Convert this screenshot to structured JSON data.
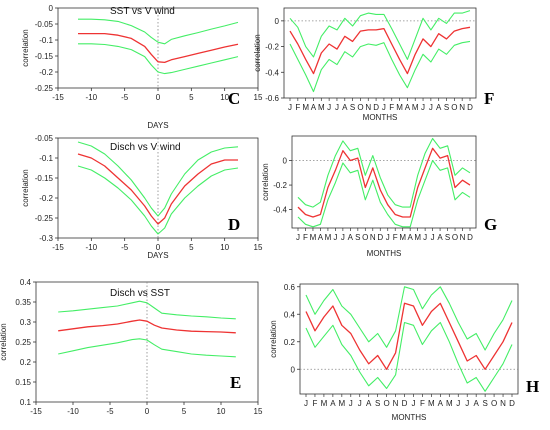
{
  "colors": {
    "mean": "#ee3333",
    "bounds": "#44ee66",
    "axis": "#333333",
    "zero_line": "#888888"
  },
  "chart_data": [
    {
      "id": "C",
      "type": "line",
      "letter": "C",
      "title": "SST vs V wind",
      "xlabel": "DAYS",
      "ylabel": "correlation",
      "xlim": [
        -15,
        15
      ],
      "ylim": [
        -0.25,
        0
      ],
      "xticks": [
        -15,
        -10,
        -5,
        0,
        5,
        10,
        15
      ],
      "yticks": [
        0,
        -0.05,
        -0.1,
        -0.15,
        -0.2,
        -0.25
      ],
      "ytick_labels": [
        "0",
        "-0.05",
        "-0.1",
        "-0.15",
        "-0.2",
        "-0.25"
      ],
      "vline_x": 0,
      "vline_dotted": true,
      "x": [
        -12,
        -10,
        -8,
        -6,
        -4,
        -2,
        -1,
        0,
        1,
        2,
        4,
        6,
        8,
        10,
        12
      ],
      "series": [
        {
          "role": "mean",
          "values": [
            -0.08,
            -0.08,
            -0.08,
            -0.085,
            -0.095,
            -0.12,
            -0.145,
            -0.168,
            -0.17,
            -0.162,
            -0.152,
            -0.142,
            -0.132,
            -0.122,
            -0.113
          ]
        },
        {
          "role": "upper",
          "values": [
            -0.035,
            -0.035,
            -0.037,
            -0.042,
            -0.055,
            -0.075,
            -0.092,
            -0.107,
            -0.112,
            -0.098,
            -0.087,
            -0.077,
            -0.066,
            -0.056,
            -0.045
          ]
        },
        {
          "role": "lower",
          "values": [
            -0.112,
            -0.112,
            -0.114,
            -0.12,
            -0.13,
            -0.152,
            -0.178,
            -0.2,
            -0.205,
            -0.202,
            -0.192,
            -0.182,
            -0.172,
            -0.162,
            -0.152
          ]
        }
      ]
    },
    {
      "id": "D",
      "type": "line",
      "letter": "D",
      "title": "Disch vs V wind",
      "xlabel": "DAYS",
      "ylabel": "correlation",
      "xlim": [
        -15,
        15
      ],
      "ylim": [
        -0.3,
        -0.05
      ],
      "xticks": [
        -15,
        -10,
        -5,
        0,
        5,
        10,
        15
      ],
      "yticks": [
        -0.05,
        -0.1,
        -0.15,
        -0.2,
        -0.25,
        -0.3
      ],
      "ytick_labels": [
        "-0.05",
        "-0.1",
        "-0.15",
        "-0.2",
        "-0.25",
        "-0.3"
      ],
      "vline_x": 0,
      "vline_dotted": true,
      "x": [
        -12,
        -10,
        -8,
        -6,
        -4,
        -2,
        -1,
        0,
        1,
        2,
        4,
        6,
        8,
        10,
        12
      ],
      "series": [
        {
          "role": "mean",
          "values": [
            -0.09,
            -0.1,
            -0.12,
            -0.15,
            -0.18,
            -0.22,
            -0.245,
            -0.265,
            -0.25,
            -0.215,
            -0.17,
            -0.14,
            -0.115,
            -0.105,
            -0.105
          ]
        },
        {
          "role": "upper",
          "values": [
            -0.06,
            -0.07,
            -0.09,
            -0.12,
            -0.155,
            -0.2,
            -0.225,
            -0.245,
            -0.225,
            -0.19,
            -0.14,
            -0.105,
            -0.085,
            -0.075,
            -0.072
          ]
        },
        {
          "role": "lower",
          "values": [
            -0.12,
            -0.13,
            -0.15,
            -0.175,
            -0.205,
            -0.245,
            -0.27,
            -0.29,
            -0.275,
            -0.24,
            -0.2,
            -0.17,
            -0.145,
            -0.13,
            -0.125
          ]
        }
      ]
    },
    {
      "id": "E",
      "type": "line",
      "letter": "E",
      "title": "Disch vs SST",
      "xlabel": "",
      "ylabel": "correlation",
      "xlim": [
        -15,
        15
      ],
      "ylim": [
        0.1,
        0.4
      ],
      "xticks": [
        -15,
        -10,
        -5,
        0,
        5,
        10,
        15
      ],
      "yticks": [
        0.4,
        0.35,
        0.3,
        0.25,
        0.2,
        0.15,
        0.1
      ],
      "ytick_labels": [
        "0.4",
        "0.35",
        "0.3",
        "0.25",
        "0.2",
        "0.15",
        "0.1"
      ],
      "vline_x": 0,
      "vline_dotted": true,
      "x": [
        -12,
        -10,
        -8,
        -6,
        -4,
        -2,
        -1,
        0,
        1,
        2,
        4,
        6,
        8,
        10,
        12
      ],
      "series": [
        {
          "role": "mean",
          "values": [
            0.278,
            0.283,
            0.288,
            0.291,
            0.295,
            0.302,
            0.305,
            0.302,
            0.292,
            0.285,
            0.28,
            0.277,
            0.276,
            0.275,
            0.273
          ]
        },
        {
          "role": "upper",
          "values": [
            0.325,
            0.328,
            0.332,
            0.336,
            0.34,
            0.348,
            0.352,
            0.348,
            0.335,
            0.322,
            0.318,
            0.315,
            0.313,
            0.31,
            0.308
          ]
        },
        {
          "role": "lower",
          "values": [
            0.22,
            0.228,
            0.236,
            0.242,
            0.248,
            0.256,
            0.258,
            0.255,
            0.243,
            0.232,
            0.226,
            0.22,
            0.217,
            0.215,
            0.213
          ]
        }
      ]
    },
    {
      "id": "F",
      "type": "line",
      "letter": "F",
      "title": "",
      "xlabel": "MONTHS",
      "ylabel": "correlation",
      "ylim": [
        -0.6,
        0.1
      ],
      "yticks": [
        0,
        -0.2,
        -0.4,
        -0.6
      ],
      "ytick_labels": [
        "0",
        "-0.2",
        "-0.4",
        "-0.6"
      ],
      "hline_y": 0,
      "hline_dotted": true,
      "categories": [
        "J",
        "F",
        "M",
        "A",
        "M",
        "J",
        "J",
        "A",
        "S",
        "O",
        "N",
        "D",
        "J",
        "F",
        "M",
        "A",
        "M",
        "J",
        "J",
        "A",
        "S",
        "O",
        "N",
        "D"
      ],
      "series": [
        {
          "role": "mean",
          "values": [
            -0.08,
            -0.18,
            -0.3,
            -0.41,
            -0.25,
            -0.18,
            -0.22,
            -0.12,
            -0.16,
            -0.08,
            -0.07,
            -0.07,
            -0.06,
            -0.18,
            -0.3,
            -0.41,
            -0.26,
            -0.14,
            -0.2,
            -0.1,
            -0.14,
            -0.08,
            -0.06,
            -0.05
          ]
        },
        {
          "role": "upper",
          "values": [
            0.02,
            -0.05,
            -0.2,
            -0.28,
            -0.12,
            -0.04,
            -0.07,
            0.02,
            -0.04,
            0.04,
            0.06,
            0.05,
            0.05,
            -0.06,
            -0.18,
            -0.3,
            -0.14,
            0.02,
            -0.07,
            0.02,
            -0.02,
            0.06,
            0.06,
            0.08
          ]
        },
        {
          "role": "lower",
          "values": [
            -0.18,
            -0.3,
            -0.42,
            -0.55,
            -0.38,
            -0.3,
            -0.34,
            -0.24,
            -0.28,
            -0.2,
            -0.18,
            -0.19,
            -0.17,
            -0.3,
            -0.42,
            -0.52,
            -0.38,
            -0.26,
            -0.32,
            -0.22,
            -0.26,
            -0.19,
            -0.17,
            -0.16
          ]
        }
      ]
    },
    {
      "id": "G",
      "type": "line",
      "letter": "G",
      "title": "",
      "xlabel": "MONTHS",
      "ylabel": "correlation",
      "ylim": [
        -0.55,
        0.2
      ],
      "yticks": [
        0,
        -0.2,
        -0.4
      ],
      "ytick_labels": [
        "0",
        "-0.2",
        "-0.4"
      ],
      "hline_y": 0,
      "hline_dotted": true,
      "categories": [
        "J",
        "F",
        "M",
        "A",
        "M",
        "J",
        "J",
        "A",
        "S",
        "O",
        "N",
        "D",
        "J",
        "F",
        "M",
        "A",
        "M",
        "J",
        "J",
        "A",
        "S",
        "O",
        "N",
        "D"
      ],
      "series": [
        {
          "role": "mean",
          "values": [
            -0.38,
            -0.44,
            -0.46,
            -0.44,
            -0.22,
            -0.08,
            0.08,
            0.0,
            0.02,
            -0.22,
            -0.06,
            -0.24,
            -0.36,
            -0.44,
            -0.46,
            -0.46,
            -0.22,
            -0.06,
            0.1,
            0.02,
            0.04,
            -0.22,
            -0.16,
            -0.2
          ]
        },
        {
          "role": "upper",
          "values": [
            -0.3,
            -0.36,
            -0.38,
            -0.34,
            -0.12,
            0.04,
            0.16,
            0.08,
            0.1,
            -0.12,
            0.04,
            -0.14,
            -0.28,
            -0.36,
            -0.38,
            -0.38,
            -0.12,
            0.06,
            0.18,
            0.1,
            0.12,
            -0.12,
            -0.06,
            -0.1
          ]
        },
        {
          "role": "lower",
          "values": [
            -0.46,
            -0.52,
            -0.54,
            -0.52,
            -0.32,
            -0.18,
            -0.02,
            -0.1,
            -0.08,
            -0.32,
            -0.16,
            -0.34,
            -0.44,
            -0.52,
            -0.54,
            -0.54,
            -0.32,
            -0.16,
            0.0,
            -0.08,
            -0.06,
            -0.32,
            -0.26,
            -0.3
          ]
        }
      ]
    },
    {
      "id": "H",
      "type": "line",
      "letter": "H",
      "title": "",
      "xlabel": "MONTHS",
      "ylabel": "correlation",
      "ylim": [
        -0.18,
        0.62
      ],
      "yticks": [
        0.6,
        0.4,
        0.2,
        0
      ],
      "ytick_labels": [
        "0.6",
        "0.4",
        "0.2",
        "0"
      ],
      "hline_y": 0,
      "hline_dotted": true,
      "categories": [
        "J",
        "F",
        "M",
        "A",
        "M",
        "J",
        "J",
        "A",
        "S",
        "O",
        "N",
        "D",
        "J",
        "F",
        "M",
        "A",
        "M",
        "J",
        "J",
        "A",
        "S",
        "O",
        "N",
        "D"
      ],
      "series": [
        {
          "role": "mean",
          "values": [
            0.42,
            0.28,
            0.38,
            0.46,
            0.32,
            0.26,
            0.14,
            0.04,
            0.1,
            0.0,
            0.12,
            0.48,
            0.46,
            0.32,
            0.42,
            0.48,
            0.34,
            0.2,
            0.06,
            0.1,
            0.0,
            0.1,
            0.2,
            0.34
          ]
        },
        {
          "role": "upper",
          "values": [
            0.54,
            0.4,
            0.5,
            0.58,
            0.46,
            0.4,
            0.3,
            0.2,
            0.26,
            0.16,
            0.28,
            0.6,
            0.58,
            0.44,
            0.54,
            0.6,
            0.48,
            0.34,
            0.22,
            0.26,
            0.14,
            0.26,
            0.36,
            0.5
          ]
        },
        {
          "role": "lower",
          "values": [
            0.3,
            0.16,
            0.24,
            0.32,
            0.18,
            0.1,
            -0.02,
            -0.12,
            -0.06,
            -0.14,
            -0.04,
            0.34,
            0.32,
            0.18,
            0.28,
            0.34,
            0.2,
            0.04,
            -0.1,
            -0.06,
            -0.16,
            -0.06,
            0.04,
            0.18
          ]
        }
      ]
    }
  ]
}
